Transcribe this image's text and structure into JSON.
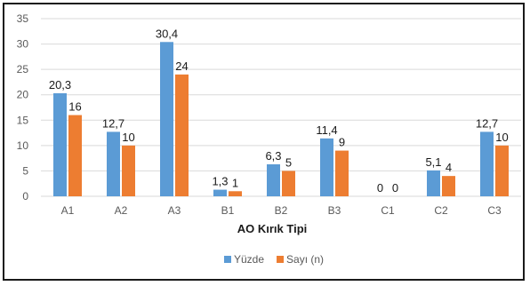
{
  "chart_data": {
    "type": "bar",
    "title": "",
    "xlabel": "AO Kırık Tipi",
    "ylabel": "",
    "categories": [
      "A1",
      "A2",
      "A3",
      "B1",
      "B2",
      "B3",
      "C1",
      "C2",
      "C3"
    ],
    "series": [
      {
        "name": "Yüzde",
        "color": "#5B9BD5",
        "values": [
          20.3,
          12.7,
          30.4,
          1.3,
          6.3,
          11.4,
          0,
          5.1,
          12.7
        ],
        "labels": [
          "20,3",
          "12,7",
          "30,4",
          "1,3",
          "6,3",
          "11,4",
          "0",
          "5,1",
          "12,7"
        ]
      },
      {
        "name": "Sayı (n)",
        "color": "#ED7D31",
        "values": [
          16,
          10,
          24,
          1,
          5,
          9,
          0,
          4,
          10
        ],
        "labels": [
          "16",
          "10",
          "24",
          "1",
          "5",
          "9",
          "0",
          "4",
          "10"
        ]
      }
    ],
    "ylim": [
      0,
      35
    ],
    "yticks": [
      0,
      5,
      10,
      15,
      20,
      25,
      30,
      35
    ],
    "grid": true,
    "gridColor": "#D9D9D9",
    "legend_position": "bottom"
  }
}
